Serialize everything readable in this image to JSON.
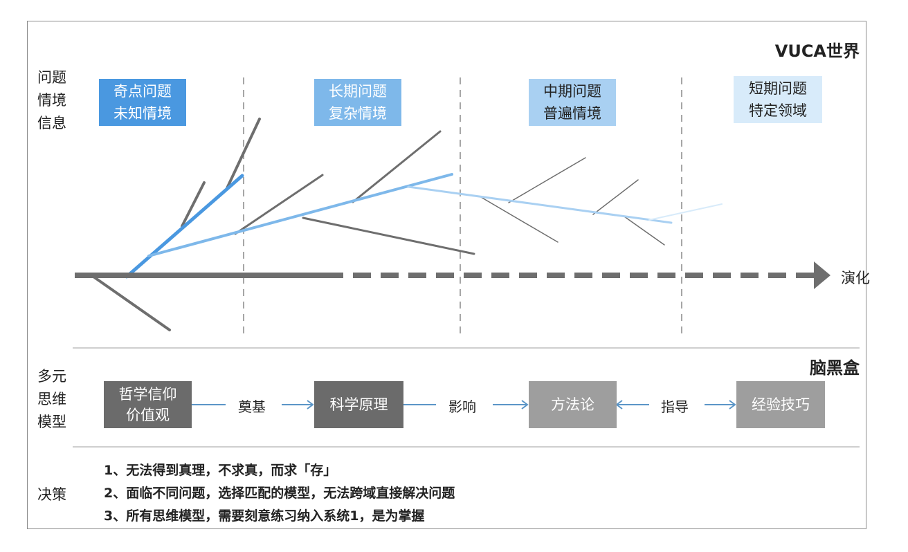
{
  "world_title": "VUCA世界",
  "brain_title": "脑黑盒",
  "left_labels": {
    "problem": [
      "问题",
      "情境",
      "信息"
    ],
    "model": [
      "多元",
      "思维",
      "模型"
    ],
    "decision": "决策"
  },
  "stages": [
    {
      "line1": "奇点问题",
      "line2": "未知情境",
      "color": "#4a98e0"
    },
    {
      "line1": "长期问题",
      "line2": "复杂情境",
      "color": "#7eb8ea"
    },
    {
      "line1": "中期问题",
      "line2": "普遍情境",
      "color": "#a9d0f2"
    },
    {
      "line1": "短期问题",
      "line2": "特定领域",
      "color": "#d8ebfa"
    }
  ],
  "axis_label": "演化",
  "models": [
    {
      "line1": "哲学信仰",
      "line2": "价值观",
      "color": "#6b6b6b"
    },
    {
      "line1": "科学原理",
      "line2": "",
      "color": "#6b6b6b"
    },
    {
      "line1": "方法论",
      "line2": "",
      "color": "#9e9e9e"
    },
    {
      "line1": "经验技巧",
      "line2": "",
      "color": "#9e9e9e"
    }
  ],
  "connectors": [
    "奠基",
    "影响",
    "指导"
  ],
  "decisions": [
    "1、无法得到真理，不求真，而求「存」",
    "2、面临不同问题，选择匹配的模型，无法跨域直接解决问题",
    "3、所有思维模型，需要刻意练习纳入系统1，是为掌握"
  ]
}
